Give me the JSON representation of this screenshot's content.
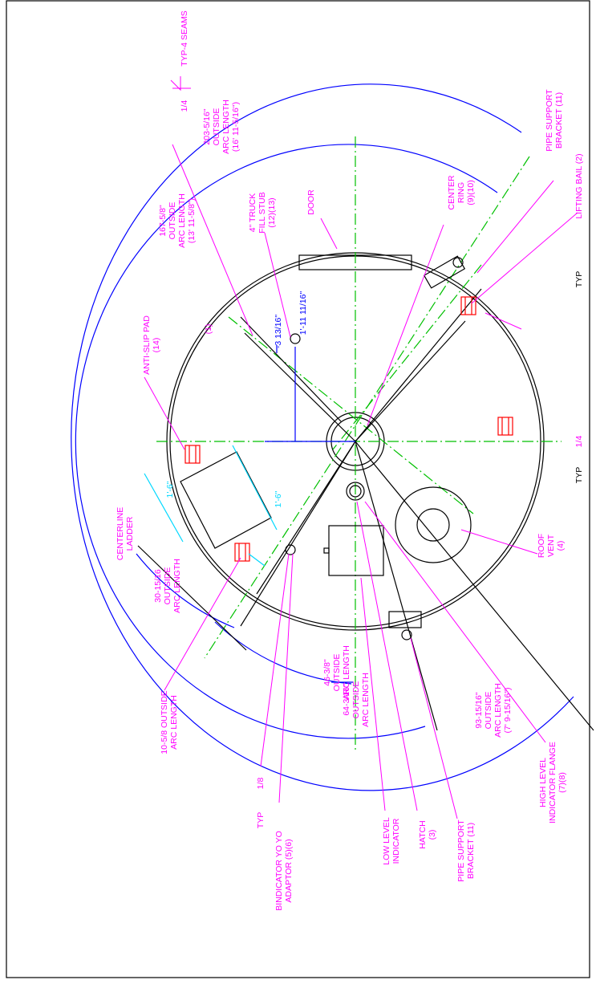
{
  "labels": [
    [
      "TYP-4 SEAMS"
    ],
    [
      "1/4"
    ],
    [
      "203-5/16\"",
      "OUTSIDE",
      "ARC LENGTH",
      "(16' 11-5/16\")"
    ],
    [
      "PIPE SUPPORT",
      "BRACKET (11)"
    ],
    [
      "LIFTING BAIL (2)"
    ],
    [
      "167-5/8\"",
      "OUTSIDE",
      "ARC LENGTH",
      "(13' 11-5/8\")"
    ],
    [
      "4\" TRUCK",
      "FILL STUB",
      "(12)(13)"
    ],
    [
      "DOOR"
    ],
    [
      "CENTER",
      "RING",
      "(9)(10)"
    ],
    [
      "TYP"
    ],
    [
      "-3 13/16\""
    ],
    [
      "1'-11 11/16\""
    ],
    [
      "ANTI-SLIP PAD",
      "(14)"
    ],
    [
      "(1)"
    ],
    [
      "TYP"
    ],
    [
      "1/4"
    ],
    [
      "1'-6\""
    ],
    [
      "1'-6\""
    ],
    [
      "CENTERLINE",
      "LADDER"
    ],
    [
      "30-15/16",
      "OUTSIDE",
      "ARC LENGTH"
    ],
    [
      "ROOF",
      "VENT",
      "(4)"
    ],
    [
      "46-3/8\"",
      "OUTSIDE",
      "ARC LENGTH"
    ],
    [
      "64-3/16\"",
      "OUTSIDE",
      "ARC LENGTH"
    ],
    [
      "93-15/16\"",
      "OUTSIDE",
      "ARC LENGTH",
      "(7' 9-15/16\")"
    ],
    [
      "10-5/8 OUTSIDE",
      "ARC LENGTH"
    ],
    [
      "TYP"
    ],
    [
      "1/8"
    ],
    [
      "HIGH LEVEL",
      "INDICATOR FLANGE",
      "(7)(8)"
    ],
    [
      "LOW LEVEL",
      "INDICATOR"
    ],
    [
      "HATCH",
      "(3)"
    ],
    [
      "PIPE SUPPORT",
      "BRACKET (11)"
    ],
    [
      "BINDICATOR YO YO",
      "ADAPTOR (5)(6)"
    ]
  ]
}
